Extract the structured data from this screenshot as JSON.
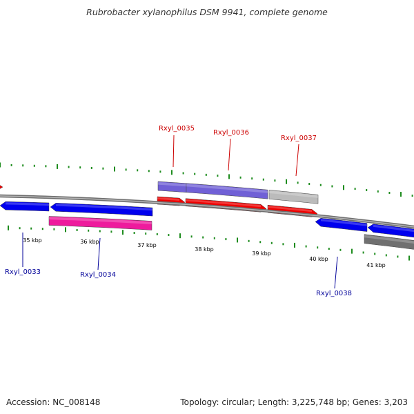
{
  "title": "Rubrobacter xylanophilus DSM 9941, complete genome",
  "accession_text": "Accession: NC_008148",
  "summary_text": "Topology: circular; Length: 3,225,748 bp; Genes: 3,203",
  "genome": {
    "accession": "NC_008148",
    "topology": "circular",
    "length_bp": 3225748,
    "gene_count": 3203
  },
  "colors": {
    "backbone": "#888888",
    "tick": "#1e8c1e",
    "gene_blue": "#0000ee",
    "gene_red": "#ee0000",
    "gene_magenta": "#ee1b9d",
    "gene_lavender": "#7060d6",
    "gene_gray": "#bbbbbb",
    "gene_darkgray": "#707070",
    "label_red": "#cc0000",
    "label_blue": "#000099"
  },
  "scale_labels": [
    {
      "kbp": 35,
      "label": "35 kbp"
    },
    {
      "kbp": 36,
      "label": "36 kbp"
    },
    {
      "kbp": 37,
      "label": "37 kbp"
    },
    {
      "kbp": 38,
      "label": "38 kbp"
    },
    {
      "kbp": 39,
      "label": "39 kbp"
    },
    {
      "kbp": 40,
      "label": "40 kbp"
    },
    {
      "kbp": 41,
      "label": "41 kbp"
    }
  ],
  "gene_labels": [
    {
      "name": "Rxyl_0033",
      "strand": "minus"
    },
    {
      "name": "Rxyl_0034",
      "strand": "minus"
    },
    {
      "name": "Rxyl_0035",
      "strand": "plus"
    },
    {
      "name": "Rxyl_0036",
      "strand": "plus"
    },
    {
      "name": "Rxyl_0037",
      "strand": "plus"
    },
    {
      "name": "Rxyl_0038",
      "strand": "minus"
    }
  ]
}
